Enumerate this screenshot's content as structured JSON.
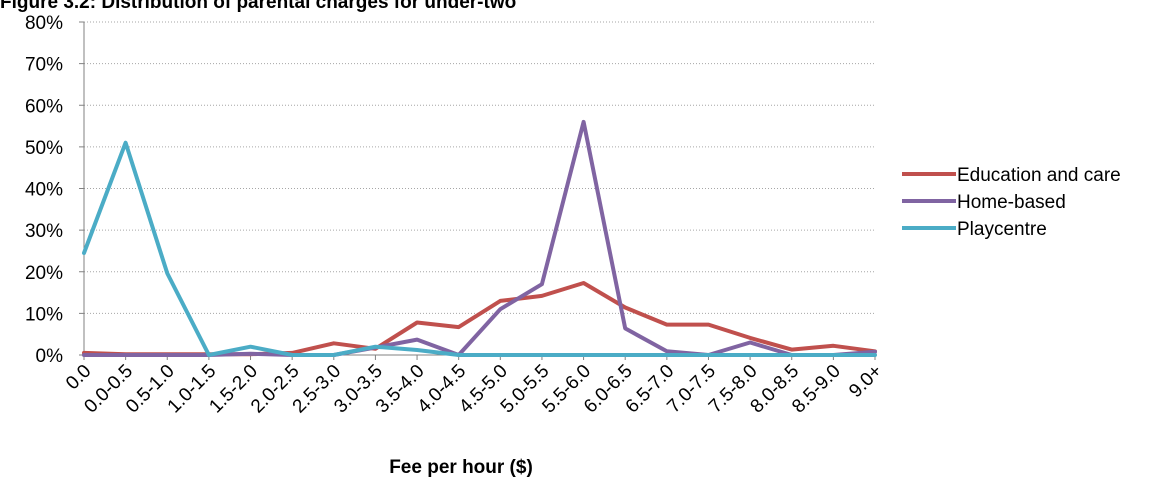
{
  "chart_data": {
    "type": "line",
    "title": "Figure 3.2: Distribution of parental charges for under-two",
    "xlabel": "Fee per hour ($)",
    "ylabel": "",
    "ylim": [
      0,
      80
    ],
    "yticks": [
      0,
      10,
      20,
      30,
      40,
      50,
      60,
      70,
      80
    ],
    "ytick_labels": [
      "0%",
      "10%",
      "20%",
      "30%",
      "40%",
      "50%",
      "60%",
      "70%",
      "80%"
    ],
    "grid": true,
    "legend_position": "right",
    "categories": [
      "0.0",
      "0.0-0.5",
      "0.5-1.0",
      "1.0-1.5",
      "1.5-2.0",
      "2.0-2.5",
      "2.5-3.0",
      "3.0-3.5",
      "3.5-4.0",
      "4.0-4.5",
      "4.5-5.0",
      "5.0-5.5",
      "5.5-6.0",
      "6.0-6.5",
      "6.5-7.0",
      "7.0-7.5",
      "7.5-8.0",
      "8.0-8.5",
      "8.5-9.0",
      "9.0+"
    ],
    "series": [
      {
        "name": "Education and care",
        "color": "#c0504d",
        "values": [
          0.5,
          0.2,
          0.2,
          0.2,
          0.2,
          0.5,
          2.8,
          1.5,
          7.8,
          6.7,
          13.0,
          14.2,
          17.3,
          11.4,
          7.3,
          7.3,
          4.1,
          1.3,
          2.2,
          0.9
        ]
      },
      {
        "name": "Home-based",
        "color": "#8064a2",
        "values": [
          0,
          0,
          0,
          0,
          0.3,
          0,
          0,
          1.8,
          3.7,
          0,
          11.0,
          17.0,
          56.0,
          6.4,
          0.9,
          0,
          3.0,
          0,
          0,
          0.8
        ]
      },
      {
        "name": "Playcentre",
        "color": "#4bacc6",
        "values": [
          24.5,
          51.0,
          19.6,
          0,
          2.0,
          0,
          0,
          2.0,
          1.2,
          0,
          0,
          0,
          0,
          0,
          0,
          0,
          0,
          0,
          0,
          0
        ]
      }
    ]
  }
}
